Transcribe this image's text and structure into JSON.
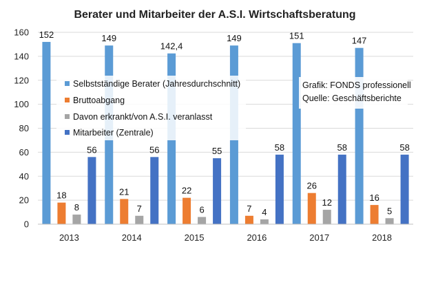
{
  "chart_data": {
    "type": "bar",
    "title": "Berater und Mitarbeiter der A.S.I. Wirtschaftsberatung",
    "xlabel": "",
    "ylabel": "",
    "ylim": [
      0,
      160
    ],
    "yticks": [
      0,
      20,
      40,
      60,
      80,
      100,
      120,
      140,
      160
    ],
    "grid": true,
    "legend_position": "top-left",
    "categories": [
      "2013",
      "2014",
      "2015",
      "2016",
      "2017",
      "2018"
    ],
    "series": [
      {
        "name": "Selbstständige Berater (Jahresdurchschnitt)",
        "color": "#5b9bd5",
        "values": [
          152,
          149,
          142.4,
          149,
          151,
          147
        ],
        "labels": [
          "152",
          "149",
          "142,4",
          "149",
          "151",
          "147"
        ]
      },
      {
        "name": "Bruttoabgang",
        "color": "#ed7d31",
        "values": [
          18,
          21,
          22,
          7,
          26,
          16
        ],
        "labels": [
          "18",
          "21",
          "22",
          "7",
          "26",
          "16"
        ]
      },
      {
        "name": "Davon erkrankt/von A.S.I. veranlasst",
        "color": "#a5a5a5",
        "values": [
          8,
          7,
          6,
          4,
          12,
          5
        ],
        "labels": [
          "8",
          "7",
          "6",
          "4",
          "12",
          "5"
        ]
      },
      {
        "name": "Mitarbeiter (Zentrale)",
        "color": "#4472c4",
        "values": [
          56,
          56,
          55,
          58,
          58,
          58
        ],
        "labels": [
          "56",
          "56",
          "55",
          "58",
          "58",
          "58"
        ]
      }
    ],
    "annotations": [
      "Grafik: FONDS professionell",
      "Quelle: Geschäftsberichte"
    ]
  }
}
